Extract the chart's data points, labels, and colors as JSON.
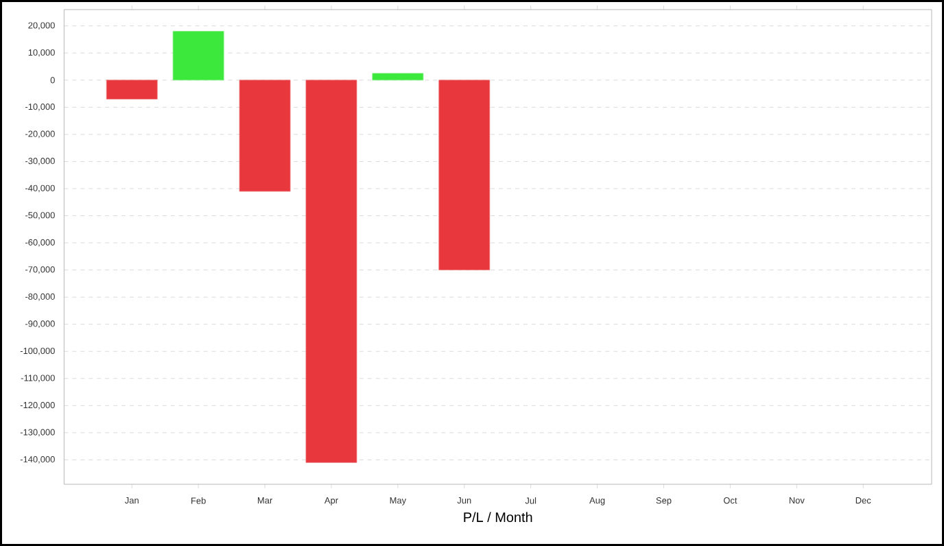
{
  "chart_data": {
    "type": "bar",
    "xlabel": "P/L / Month",
    "categories": [
      "Jan",
      "Feb",
      "Mar",
      "Apr",
      "May",
      "Jun",
      "Jul",
      "Aug",
      "Sep",
      "Oct",
      "Nov",
      "Dec"
    ],
    "values": [
      -7000,
      18000,
      -41000,
      -141000,
      2500,
      -70000,
      null,
      null,
      null,
      null,
      null,
      null
    ],
    "colors": [
      "#e8383d",
      "#3de83d",
      "#e8383d",
      "#e8383d",
      "#3de83d",
      "#e8383d",
      null,
      null,
      null,
      null,
      null,
      null
    ],
    "ylim": [
      -149000,
      26000
    ],
    "yticks": [
      {
        "value": 20000,
        "label": "20,000"
      },
      {
        "value": 10000,
        "label": "10,000"
      },
      0,
      {
        "value": -10000,
        "label": "-10,000"
      },
      {
        "value": -20000,
        "label": "-20,000"
      },
      {
        "value": -30000,
        "label": "-30,000"
      },
      {
        "value": -40000,
        "label": "-40,000"
      },
      {
        "value": -50000,
        "label": "-50,000"
      },
      {
        "value": -60000,
        "label": "-60,000"
      },
      {
        "value": -70000,
        "label": "-70,000"
      },
      {
        "value": -80000,
        "label": "-80,000"
      },
      {
        "value": -90000,
        "label": "-90,000"
      },
      {
        "value": -100000,
        "label": "-100,000"
      },
      {
        "value": -110000,
        "label": "-110,000"
      },
      {
        "value": -120000,
        "label": "-120,000"
      },
      {
        "value": -130000,
        "label": "-130,000"
      },
      {
        "value": -140000,
        "label": "-140,000"
      }
    ],
    "grid": "y"
  }
}
